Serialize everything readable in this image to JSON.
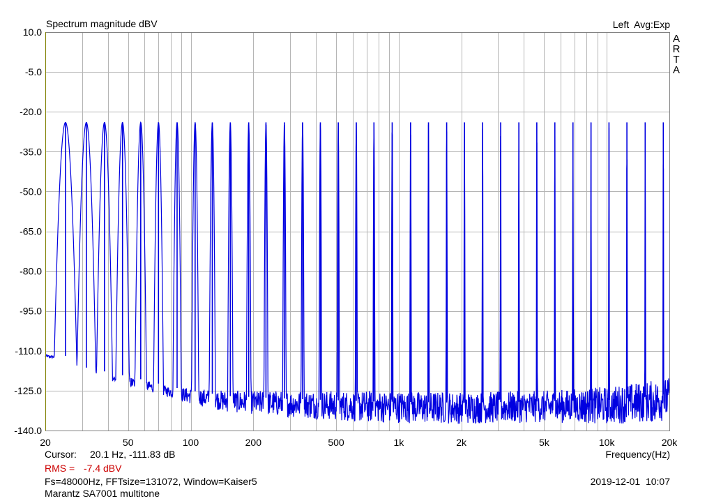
{
  "header": {
    "title": "Spectrum magnitude dBV",
    "mode": "Left  Avg:Exp"
  },
  "brand_letters": [
    "A",
    "R",
    "T",
    "A"
  ],
  "footer": {
    "cursor_label": "Cursor:",
    "cursor_value": "20.1 Hz, -111.83 dB",
    "rms_label": "RMS =",
    "rms_value": "-7.4 dBV",
    "settings": "Fs=48000Hz, FFTsize=131072, Window=Kaiser5",
    "datetime": "2019-12-01  10:07",
    "note": "Marantz SA7001 multitone"
  },
  "colors": {
    "trace": "#0000e0",
    "grid": "#b4b4b4",
    "left_axis": "#808000",
    "rms": "#cc0000"
  },
  "chart_data": {
    "type": "line",
    "title": "Spectrum magnitude dBV",
    "xlabel": "Frequency(Hz)",
    "ylabel": "",
    "x_scale": "log",
    "xlim": [
      20,
      20000
    ],
    "ylim": [
      -140,
      10
    ],
    "grid": true,
    "x_ticks": [
      {
        "v": 20,
        "label": "20"
      },
      {
        "v": 50,
        "label": "50"
      },
      {
        "v": 100,
        "label": "100"
      },
      {
        "v": 200,
        "label": "200"
      },
      {
        "v": 500,
        "label": "500"
      },
      {
        "v": 1000,
        "label": "1k"
      },
      {
        "v": 2000,
        "label": "2k"
      },
      {
        "v": 5000,
        "label": "5k"
      },
      {
        "v": 10000,
        "label": "10k"
      },
      {
        "v": 20000,
        "label": "20k"
      }
    ],
    "y_ticks": [
      {
        "v": 10,
        "label": "10.0"
      },
      {
        "v": -5,
        "label": "-5.0"
      },
      {
        "v": -20,
        "label": "-20.0"
      },
      {
        "v": -35,
        "label": "-35.0"
      },
      {
        "v": -50,
        "label": "-50.0"
      },
      {
        "v": -65,
        "label": "-65.0"
      },
      {
        "v": -80,
        "label": "-80.0"
      },
      {
        "v": -95,
        "label": "-95.0"
      },
      {
        "v": -110,
        "label": "-110.0"
      },
      {
        "v": -125,
        "label": "-125.0"
      },
      {
        "v": -140,
        "label": "-140.0"
      }
    ],
    "tone_level_dbv": -24,
    "tones_hz": [
      25,
      31.5,
      38.5,
      47,
      57.5,
      70,
      86,
      105,
      127,
      155,
      190,
      230,
      282,
      345,
      420,
      512,
      625,
      760,
      930,
      1140,
      1390,
      1700,
      2070,
      2530,
      3090,
      3780,
      4610,
      5630,
      6880,
      8400,
      10250,
      12500,
      15300,
      18700
    ],
    "noise_floor": {
      "x": [
        20,
        23.5,
        30,
        40,
        60,
        80,
        100,
        150,
        300,
        700,
        2000,
        5000,
        10000,
        17000,
        20000
      ],
      "y": [
        -112,
        -112.5,
        -118,
        -120,
        -123,
        -125.5,
        -127,
        -129,
        -130,
        -131,
        -131.5,
        -131,
        -130.5,
        -129,
        -128
      ],
      "ripple_db": [
        0.5,
        0.5,
        1,
        2,
        2,
        2,
        3,
        4,
        5,
        6,
        6,
        6,
        7,
        8,
        8
      ]
    }
  }
}
